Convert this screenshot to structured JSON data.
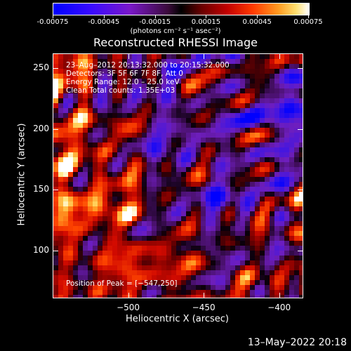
{
  "colorbar": {
    "tick_labels": [
      "-0.00075",
      "-0.00045",
      "-0.00015",
      "0.00015",
      "0.00045",
      "0.00075"
    ],
    "unit_label": "(photons cm⁻² s⁻¹ asec⁻²)"
  },
  "chart_data": {
    "type": "heatmap",
    "title": "Reconstructed RHESSI Image",
    "xlabel": "Heliocentric X (arcsec)",
    "ylabel": "Heliocentric Y (arcsec)",
    "xlim": [
      -550,
      -385
    ],
    "ylim": [
      62,
      262
    ],
    "x_ticks": [
      -500,
      -450,
      -400
    ],
    "y_ticks": [
      100,
      150,
      200,
      250
    ],
    "x_tick_labels": [
      "−500",
      "−450",
      "−400"
    ],
    "y_tick_labels": [
      "100",
      "150",
      "200",
      "250"
    ],
    "zlim": [
      -0.00075,
      0.00075
    ],
    "annotations": [
      "23–Aug–2012 20:13:32.000 to 20:15:32.000",
      "Detectors: 3F 5F 6F 7F 8F, Att 0",
      "Energy Range: 12.0 – 25.0 keV",
      "Clean     Total counts: 1.35E+03"
    ],
    "peak_label": "Position of Peak = [−547,250]",
    "peak_position": [
      -547,
      250
    ]
  },
  "footer": {
    "timestamp": "13–May–2022 20:18"
  },
  "colors": {
    "background": "#000000",
    "text": "#ffffff"
  }
}
